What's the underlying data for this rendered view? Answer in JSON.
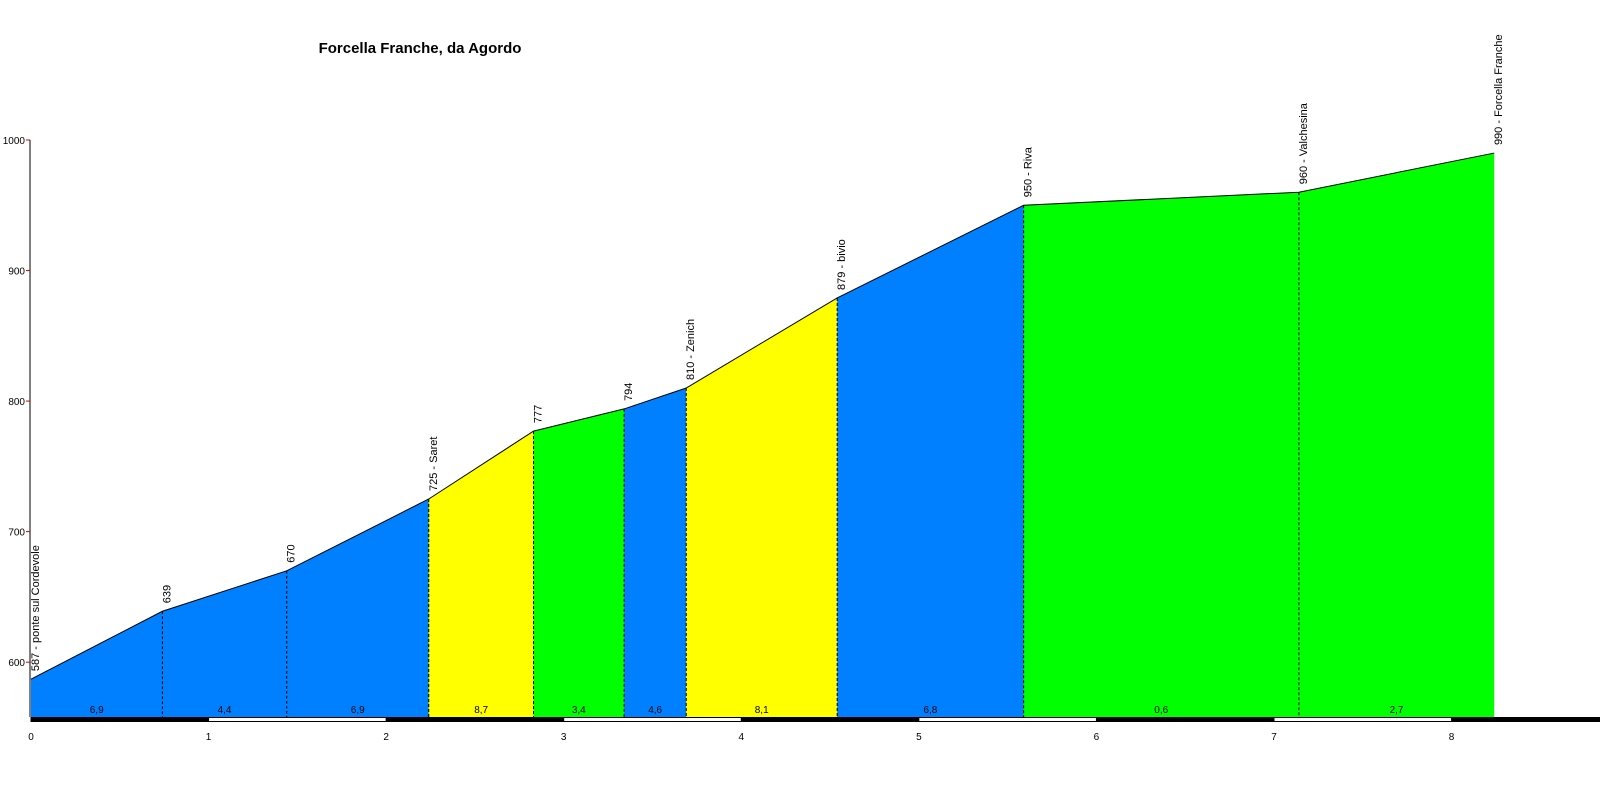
{
  "chart_data": {
    "type": "elevation-profile",
    "title": "Forcella Franche, da Agordo",
    "x": [
      0,
      0.74,
      1.44,
      2.24,
      2.83,
      3.34,
      3.69,
      4.54,
      5.59,
      7.14,
      8.24
    ],
    "series": [
      {
        "values": [
          587,
          639,
          670,
          725,
          777,
          794,
          810,
          879,
          950,
          960,
          990
        ],
        "value_labels": [
          "587 - ponte sul Cordevole",
          "639",
          "670",
          "725 - Saret",
          "777",
          "794",
          "810 - Zenich",
          "879 - bivio",
          "950 - Riva",
          "960 - Valchesina",
          "990 - Forcella Franche"
        ]
      }
    ],
    "segments": {
      "values": [
        6.9,
        4.4,
        6.9,
        8.7,
        3.4,
        4.6,
        8.1,
        6.8,
        0.6,
        2.7
      ],
      "value_labels": [
        "6,9",
        "4,4",
        "6,9",
        "8,7",
        "3,4",
        "4,6",
        "8,1",
        "6,8",
        "0,6",
        "2,7"
      ],
      "colors": [
        "#0080ff",
        "#0080ff",
        "#0080ff",
        "#ffff00",
        "#00ff00",
        "#0080ff",
        "#ffff00",
        "#0080ff",
        "#00ff00",
        "#00ff00"
      ]
    },
    "xlim": [
      0,
      8.65
    ],
    "xticks": [
      0,
      1,
      2,
      3,
      4,
      5,
      6,
      7,
      8
    ],
    "ylim": [
      558,
      1000
    ],
    "yticks": [
      600,
      700,
      800,
      900,
      1000
    ]
  }
}
